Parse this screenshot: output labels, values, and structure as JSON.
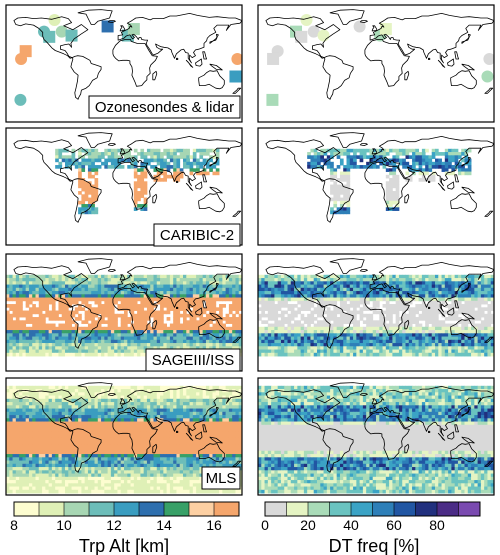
{
  "chart_data": [
    {
      "type": "heatmap",
      "panel": "left-1",
      "label": "Ozonesondes & lidar",
      "variable": "Trp Alt",
      "sites": [
        {
          "lon": -122,
          "lat": 49,
          "value": 11.5,
          "marker": "circle"
        },
        {
          "lon": -106,
          "lat": 67,
          "value": 9.0,
          "marker": "circle"
        },
        {
          "lon": -95,
          "lat": 49,
          "value": 10.5,
          "marker": "circle"
        },
        {
          "lon": -114,
          "lat": 41,
          "value": 11.0,
          "marker": "square"
        },
        {
          "lon": -80,
          "lat": 43,
          "value": 11.5,
          "marker": "square"
        },
        {
          "lon": -150,
          "lat": 19,
          "value": 16.0,
          "marker": "square"
        },
        {
          "lon": -157,
          "lat": 7,
          "value": 16.0,
          "marker": "circle"
        },
        {
          "lon": -25,
          "lat": 57,
          "value": 13.0,
          "marker": "square"
        },
        {
          "lon": 6,
          "lat": 43,
          "value": 11.5,
          "marker": "square"
        },
        {
          "lon": 15,
          "lat": 53,
          "value": 10.0,
          "marker": "square"
        },
        {
          "lon": 173,
          "lat": 7,
          "value": 16.0,
          "marker": "circle"
        },
        {
          "lon": 170,
          "lat": -20,
          "value": 12.5,
          "marker": "square"
        },
        {
          "lon": -158,
          "lat": -56,
          "value": 11.0,
          "marker": "circle"
        }
      ]
    },
    {
      "type": "heatmap",
      "panel": "right-1",
      "variable": "DT freq",
      "sites": [
        {
          "lon": -122,
          "lat": 49,
          "value": 20
        },
        {
          "lon": -106,
          "lat": 67,
          "value": 10
        },
        {
          "lon": -95,
          "lat": 49,
          "value": 5
        },
        {
          "lon": -114,
          "lat": 41,
          "value": 5
        },
        {
          "lon": -80,
          "lat": 43,
          "value": 15
        },
        {
          "lon": -150,
          "lat": 19,
          "value": 2
        },
        {
          "lon": -157,
          "lat": 7,
          "value": 2
        },
        {
          "lon": -25,
          "lat": 57,
          "value": 5
        },
        {
          "lon": 6,
          "lat": 43,
          "value": 20
        },
        {
          "lon": 15,
          "lat": 53,
          "value": 10
        },
        {
          "lon": 173,
          "lat": 7,
          "value": 2
        },
        {
          "lon": 170,
          "lat": -20,
          "value": 25
        },
        {
          "lon": -158,
          "lat": -56,
          "value": 25
        }
      ]
    },
    {
      "type": "heatmap",
      "panel": "left-2",
      "label": "CARIBIC-2",
      "variable": "Trp Alt",
      "coverage": "flight corridors",
      "tropics_value": 16.5,
      "midlat_value": 11.0
    },
    {
      "type": "heatmap",
      "panel": "right-2",
      "variable": "DT freq",
      "coverage": "flight corridors",
      "tropics_value": 2,
      "midlat_value": 45
    },
    {
      "type": "heatmap",
      "panel": "left-3",
      "label": "SAGEIII/ISS",
      "variable": "Trp Alt",
      "coverage": "lat 60S-60N",
      "tropics_value": 16.5,
      "midlat_value": 11.0
    },
    {
      "type": "heatmap",
      "panel": "right-3",
      "variable": "DT freq",
      "coverage": "lat 60S-60N",
      "tropics_value": 2,
      "midlat_value": 45
    },
    {
      "type": "heatmap",
      "panel": "left-4",
      "label": "MLS",
      "variable": "Trp Alt",
      "coverage": "lat 82S-82N",
      "tropics_value": 16.5,
      "midlat_value": 11.0
    },
    {
      "type": "heatmap",
      "panel": "right-4",
      "variable": "DT freq",
      "coverage": "lat 82S-82N",
      "tropics_value": 2,
      "midlat_value": 40
    }
  ],
  "colorbars": {
    "left": {
      "label": "Trp Alt [km]",
      "ticks": [
        "8",
        "10",
        "12",
        "14",
        "16"
      ],
      "range": [
        8,
        17
      ],
      "levels": 9,
      "colors": [
        "#fdfdd0",
        "#dff0b6",
        "#a7d6b3",
        "#6cbdb9",
        "#3a9dc0",
        "#2e6fae",
        "#38a067",
        "#fdd0a3",
        "#f5a66c"
      ]
    },
    "right": {
      "label": "DT freq [%]",
      "ticks": [
        "0",
        "20",
        "40",
        "60",
        "80"
      ],
      "range": [
        0,
        100
      ],
      "levels": 10,
      "colors": [
        "#d9d9d9",
        "#e5f4c3",
        "#a9dbb8",
        "#6ac3c0",
        "#3ba3c5",
        "#2e7fb8",
        "#2156a3",
        "#21307e",
        "#4b2c86",
        "#7a4ab0"
      ]
    }
  }
}
